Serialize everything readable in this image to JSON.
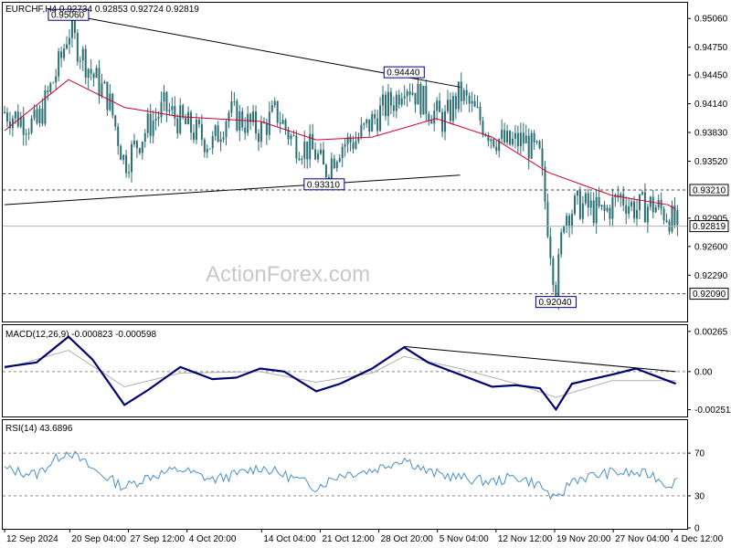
{
  "header": {
    "symbol_line": "EURCHF,H4  0.92734 0.92853 0.92724 0.92819",
    "watermark": "ActionForex.com"
  },
  "colors": {
    "candle": "#2b6e74",
    "ma": "#d6002a",
    "macd": "#00006e",
    "signal": "#b0b0b0",
    "rsi": "#4a90c8",
    "trendline": "#000000",
    "annotation_border": "#00007c",
    "annotation_text": "#00007c"
  },
  "chart_data": [
    {
      "type": "candlestick",
      "title": "EURCHF,H4",
      "ohlc_current": {
        "open": 0.92734,
        "high": 0.92853,
        "low": 0.92724,
        "close": 0.92819
      },
      "ylim": [
        0.918,
        0.9522
      ],
      "yticks": [
        "0.95060",
        "0.94750",
        "0.94450",
        "0.94140",
        "0.93830",
        "0.93520",
        "0.93210",
        "0.92905",
        "0.92600",
        "0.92290",
        "0.92090"
      ],
      "price_labels": [
        {
          "text": "0.93210",
          "value": 0.9321,
          "style": "dashed"
        },
        {
          "text": "0.92819",
          "value": 0.92819,
          "style": "solid"
        },
        {
          "text": "0.92090",
          "value": 0.9209,
          "style": "dashed"
        }
      ],
      "annotations": [
        {
          "text": "0.95060",
          "x": "20 Sep 2024",
          "value": 0.9506
        },
        {
          "text": "0.94440",
          "x": "1 Nov 2024",
          "value": 0.9444
        },
        {
          "text": "0.93310",
          "x": "22 Oct 2024",
          "value": 0.9331
        },
        {
          "text": "0.92040",
          "x": "20 Nov 2024",
          "value": 0.9204
        }
      ],
      "trendlines": [
        {
          "from": {
            "x": "20 Sep 2024",
            "value": 0.951
          },
          "to": {
            "x": "8 Nov 2024",
            "value": 0.9432
          }
        },
        {
          "from": {
            "x": "12 Sep 2024",
            "value": 0.9305
          },
          "to": {
            "x": "8 Nov 2024",
            "value": 0.9337
          }
        }
      ],
      "x_tick_labels": [
        "12 Sep 2024",
        "20 Sep 04:00",
        "27 Sep 12:00",
        "4 Oct 20:00",
        "14 Oct 04:00",
        "21 Oct 12:00",
        "28 Oct 20:00",
        "5 Nov 04:00",
        "12 Nov 12:00",
        "19 Nov 20:00",
        "27 Nov 04:00",
        "4 Dec 12:00"
      ],
      "series": [
        {
          "kind": "close_path",
          "x": [
            "12 Sep 2024",
            "16 Sep 2024",
            "19 Sep 2024",
            "20 Sep 2024",
            "23 Sep 2024",
            "25 Sep 2024",
            "27 Sep 2024",
            "30 Sep 2024",
            "2 Oct 2024",
            "4 Oct 2024",
            "8 Oct 2024",
            "10 Oct 2024",
            "14 Oct 2024",
            "16 Oct 2024",
            "18 Oct 2024",
            "21 Oct 2024",
            "22 Oct 2024",
            "24 Oct 2024",
            "26 Oct 2024",
            "29 Oct 2024",
            "31 Oct 2024",
            "1 Nov 2024",
            "4 Nov 2024",
            "6 Nov 2024",
            "8 Nov 2024",
            "12 Nov 2024",
            "14 Nov 2024",
            "16 Nov 2024",
            "18 Nov 2024",
            "20 Nov 2024",
            "21 Nov 2024",
            "23 Nov 2024",
            "26 Nov 2024",
            "28 Nov 2024",
            "30 Nov 2024",
            "2 Dec 2024",
            "4 Dec 2024",
            "5 Dec 2024"
          ],
          "values": [
            0.9405,
            0.939,
            0.946,
            0.9495,
            0.9445,
            0.942,
            0.935,
            0.939,
            0.941,
            0.9395,
            0.937,
            0.9405,
            0.9385,
            0.9405,
            0.9375,
            0.936,
            0.934,
            0.937,
            0.9375,
            0.9405,
            0.942,
            0.944,
            0.941,
            0.9395,
            0.9425,
            0.938,
            0.937,
            0.9375,
            0.9355,
            0.921,
            0.9295,
            0.9305,
            0.9295,
            0.9315,
            0.93,
            0.9305,
            0.9295,
            0.9282
          ]
        },
        {
          "kind": "moving_average",
          "x": [
            "12 Sep 2024",
            "20 Sep 2024",
            "27 Sep 2024",
            "4 Oct 2024",
            "14 Oct 2024",
            "21 Oct 2024",
            "28 Oct 2024",
            "5 Nov 2024",
            "12 Nov 2024",
            "19 Nov 2024",
            "27 Nov 2024",
            "4 Dec 2024",
            "5 Dec 2024"
          ],
          "values": [
            0.9385,
            0.944,
            0.941,
            0.94,
            0.9395,
            0.9375,
            0.9378,
            0.9398,
            0.9378,
            0.934,
            0.9315,
            0.9305,
            0.93
          ]
        }
      ]
    },
    {
      "type": "line",
      "title": "MACD(12,26,9) -0.000823 -0.000598",
      "ylim": [
        -0.0029,
        0.003
      ],
      "yticks": [
        "0.00265",
        "0.00",
        "-0.002511"
      ],
      "trendlines": [
        {
          "from": {
            "x": "1 Nov 2024",
            "value": 0.00165
          },
          "to": {
            "x": "5 Dec 2024",
            "value": 0.0
          }
        }
      ],
      "series": [
        {
          "name": "MACD",
          "x": [
            "12 Sep 2024",
            "16 Sep 2024",
            "20 Sep 2024",
            "23 Sep 2024",
            "27 Sep 2024",
            "30 Sep 2024",
            "4 Oct 2024",
            "8 Oct 2024",
            "11 Oct 2024",
            "14 Oct 2024",
            "17 Oct 2024",
            "21 Oct 2024",
            "24 Oct 2024",
            "28 Oct 2024",
            "1 Nov 2024",
            "4 Nov 2024",
            "8 Nov 2024",
            "12 Nov 2024",
            "15 Nov 2024",
            "18 Nov 2024",
            "20 Nov 2024",
            "22 Nov 2024",
            "27 Nov 2024",
            "30 Nov 2024",
            "4 Dec 2024",
            "5 Dec 2024"
          ],
          "values": [
            0.0003,
            0.0006,
            0.0023,
            0.0008,
            -0.0022,
            -0.0012,
            0.0003,
            -0.0005,
            -0.0004,
            0.0002,
            0.0,
            -0.0013,
            -0.0008,
            0.0002,
            0.0016,
            0.0006,
            -0.0002,
            -0.001,
            -0.0009,
            -0.0011,
            -0.0025,
            -0.0008,
            -0.0002,
            0.0002,
            -0.0006,
            -0.0008
          ]
        },
        {
          "name": "Signal",
          "x": [
            "12 Sep 2024",
            "20 Sep 2024",
            "27 Sep 2024",
            "4 Oct 2024",
            "14 Oct 2024",
            "21 Oct 2024",
            "28 Oct 2024",
            "1 Nov 2024",
            "8 Nov 2024",
            "15 Nov 2024",
            "20 Nov 2024",
            "27 Nov 2024",
            "5 Dec 2024"
          ],
          "values": [
            0.0002,
            0.0014,
            -0.001,
            -0.0001,
            0.0,
            -0.0007,
            -0.0001,
            0.001,
            0.0002,
            -0.0008,
            -0.0017,
            -0.0006,
            -0.0006
          ]
        }
      ]
    },
    {
      "type": "line",
      "title": "RSI(14) 43.6896",
      "ylim": [
        0,
        100
      ],
      "yticks": [
        "70",
        "30",
        "0"
      ],
      "levels": [
        70,
        30
      ],
      "series": [
        {
          "name": "RSI",
          "x": [
            "12 Sep 2024",
            "16 Sep 2024",
            "19 Sep 2024",
            "20 Sep 2024",
            "23 Sep 2024",
            "27 Sep 2024",
            "30 Sep 2024",
            "4 Oct 2024",
            "8 Oct 2024",
            "11 Oct 2024",
            "14 Oct 2024",
            "18 Oct 2024",
            "21 Oct 2024",
            "24 Oct 2024",
            "28 Oct 2024",
            "1 Nov 2024",
            "4 Nov 2024",
            "8 Nov 2024",
            "12 Nov 2024",
            "15 Nov 2024",
            "18 Nov 2024",
            "20 Nov 2024",
            "22 Nov 2024",
            "27 Nov 2024",
            "2 Dec 2024",
            "4 Dec 2024",
            "5 Dec 2024"
          ],
          "values": [
            55,
            50,
            68,
            72,
            55,
            38,
            48,
            55,
            45,
            50,
            57,
            47,
            38,
            50,
            54,
            65,
            52,
            47,
            43,
            48,
            40,
            25,
            45,
            52,
            50,
            40,
            43.7
          ]
        }
      ]
    }
  ]
}
